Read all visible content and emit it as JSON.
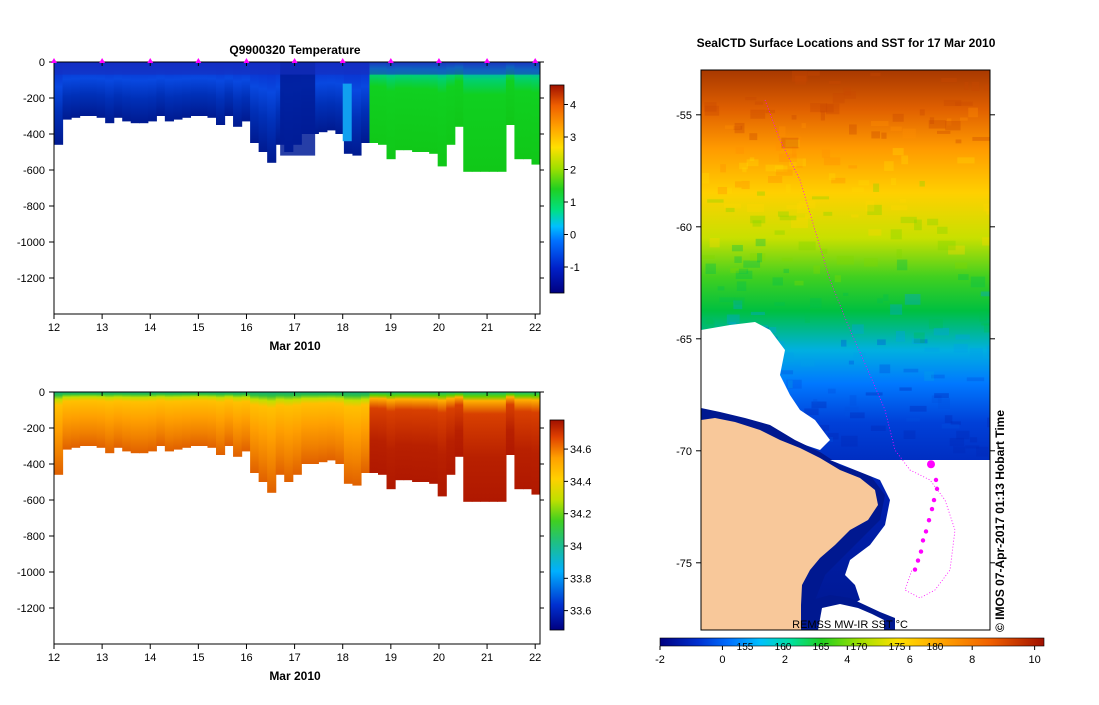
{
  "chart_data": [
    {
      "type": "heatmap",
      "id": "temperature",
      "title": "Q9900320  Temperature",
      "xlabel": "Mar 2010",
      "x_ticks": [
        "12",
        "13",
        "14",
        "15",
        "16",
        "17",
        "18",
        "19",
        "20",
        "21",
        "22"
      ],
      "xlim": [
        12,
        22.1
      ],
      "y_ticks": [
        "0",
        "-200",
        "-400",
        "-600",
        "-800",
        "-1000",
        "-1200"
      ],
      "ylim": [
        -1400,
        0
      ],
      "profile_depths": [
        -460,
        -320,
        -310,
        -300,
        -300,
        -310,
        -340,
        -310,
        -330,
        -340,
        -340,
        -330,
        -300,
        -330,
        -320,
        -310,
        -300,
        -300,
        -310,
        -350,
        -300,
        -360,
        -330,
        -450,
        -500,
        -560,
        -460,
        -500,
        -460,
        -400,
        -400,
        -390,
        -380,
        -400,
        -510,
        -520,
        -450,
        -450,
        -460,
        -540,
        -490,
        -490,
        -500,
        -500,
        -510,
        -580,
        -460,
        -360,
        -610,
        -610,
        -610,
        -610,
        -610,
        -350,
        -540,
        -540,
        -570
      ],
      "colorbar_ticks": [
        "4",
        "3",
        "2",
        "1",
        "0",
        "-1"
      ],
      "colorbar_range": [
        -1.8,
        4.6
      ],
      "markers_at_days": [
        12,
        13,
        14,
        15,
        16,
        17,
        18,
        19,
        20,
        21,
        22
      ]
    },
    {
      "type": "heatmap",
      "id": "salinity",
      "title": "",
      "xlabel": "Mar 2010",
      "x_ticks": [
        "12",
        "13",
        "14",
        "15",
        "16",
        "17",
        "18",
        "19",
        "20",
        "21",
        "22"
      ],
      "xlim": [
        12,
        22.1
      ],
      "y_ticks": [
        "0",
        "-200",
        "-400",
        "-600",
        "-800",
        "-1000",
        "-1200"
      ],
      "ylim": [
        -1400,
        0
      ],
      "colorbar_ticks": [
        "34.6",
        "34.4",
        "34.2",
        "34",
        "33.8",
        "33.6"
      ],
      "colorbar_range": [
        33.48,
        34.78
      ]
    },
    {
      "type": "heatmap",
      "id": "sst_map",
      "title": "SealCTD Surface Locations and SST for 17 Mar 2010",
      "y_ticks": [
        "-55",
        "-60",
        "-65",
        "-70",
        "-75"
      ],
      "ylim": [
        -78,
        -53
      ],
      "colorbar_ticks": [
        "-2",
        "0",
        "2",
        "4",
        "6",
        "8",
        "10"
      ],
      "colorbar_range": [
        -2,
        10.3
      ],
      "colorbar_overlay_ticks": [
        "155",
        "160",
        "165",
        "170",
        "175",
        "180"
      ],
      "colorbar_label": "REMSS MW-IR SST °C",
      "side_text": "© IMOS 07-Apr-2017 01:13 Hobart Time",
      "track_latitudes": [
        -70.6,
        -71.3,
        -71.7,
        -72.2,
        -72.6,
        -73.1,
        -73.6,
        -74.0,
        -74.5,
        -74.9,
        -75.3
      ]
    }
  ],
  "colors": {
    "land": "#f8c89a",
    "magenta": "#ff00ff",
    "ice_white": "#ffffff"
  }
}
